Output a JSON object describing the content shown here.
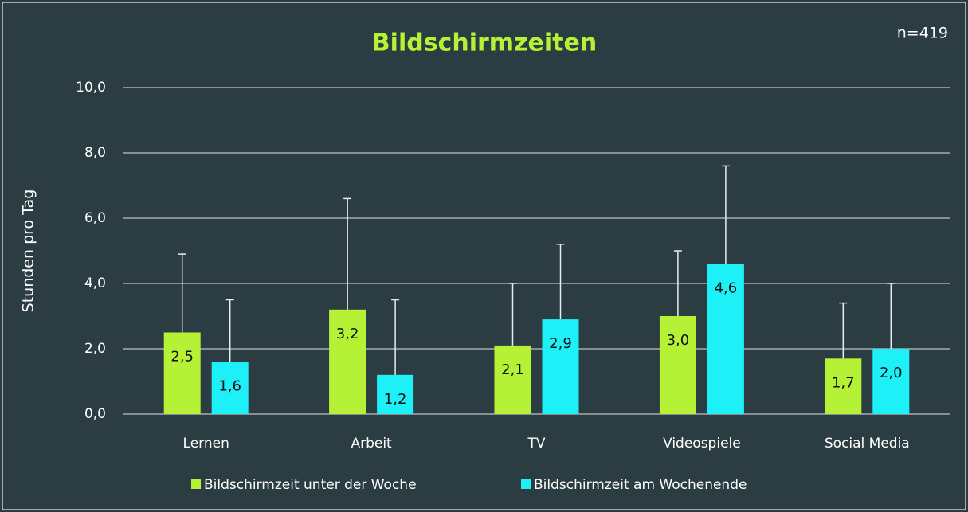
{
  "chart_data": {
    "type": "bar",
    "title": "Bildschirmzeiten",
    "annotation": "n=419",
    "y_label": "Stunden pro Tag",
    "categories": [
      "Lernen",
      "Arbeit",
      "TV",
      "Videospiele",
      "Social Media"
    ],
    "series": [
      {
        "name": "Bildschirmzeit unter der Woche",
        "color": "#b5f236",
        "values": [
          2.5,
          3.2,
          2.1,
          3.0,
          1.7
        ],
        "value_labels": [
          "2,5",
          "3,2",
          "2,1",
          "3,0",
          "1,7"
        ],
        "errors": [
          2.4,
          3.4,
          1.9,
          2.0,
          1.7
        ]
      },
      {
        "name": "Bildschirmzeit am Wochenende",
        "color": "#1ef0f7",
        "values": [
          1.6,
          1.2,
          2.9,
          4.6,
          2.0
        ],
        "value_labels": [
          "1,6",
          "1,2",
          "2,9",
          "4,6",
          "2,0"
        ],
        "errors": [
          1.9,
          2.3,
          2.3,
          3.0,
          2.0
        ]
      }
    ],
    "ylim": [
      0,
      10
    ],
    "yticks": [
      {
        "value": 0,
        "label": "0,0"
      },
      {
        "value": 2,
        "label": "2,0"
      },
      {
        "value": 4,
        "label": "4,0"
      },
      {
        "value": 6,
        "label": "6,0"
      },
      {
        "value": 8,
        "label": "8,0"
      },
      {
        "value": 10,
        "label": "10,0"
      }
    ],
    "grid": true,
    "legend": "bottom"
  }
}
